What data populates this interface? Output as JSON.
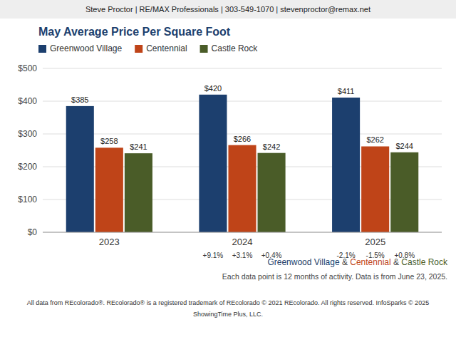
{
  "chart_data": {
    "type": "bar",
    "header": "Steve Proctor | RE/MAX Professionals | 303-549-1070 | stevenproctor@remax.net",
    "title": "May Average Price Per Square Foot",
    "categories": [
      "2023",
      "2024",
      "2025"
    ],
    "series": [
      {
        "name": "Greenwood Village",
        "color": "#1C3F6E",
        "values": [
          385,
          420,
          411
        ],
        "value_labels": [
          "$385",
          "$420",
          "$411"
        ],
        "change_labels": [
          null,
          "+9.1%",
          "-2.1%"
        ]
      },
      {
        "name": "Centennial",
        "color": "#BF4418",
        "values": [
          258,
          266,
          262
        ],
        "value_labels": [
          "$258",
          "$266",
          "$262"
        ],
        "change_labels": [
          null,
          "+3.1%",
          "-1.5%"
        ]
      },
      {
        "name": "Castle Rock",
        "color": "#4A5C28",
        "values": [
          241,
          242,
          244
        ],
        "value_labels": [
          "$241",
          "$242",
          "$244"
        ],
        "change_labels": [
          null,
          "+0.4%",
          "+0.8%"
        ]
      }
    ],
    "ylim": [
      0,
      500
    ],
    "yticks": [
      {
        "value": 0,
        "label": "$0"
      },
      {
        "value": 100,
        "label": "$100"
      },
      {
        "value": 200,
        "label": "$200"
      },
      {
        "value": 300,
        "label": "$300"
      },
      {
        "value": 400,
        "label": "$400"
      },
      {
        "value": 500,
        "label": "$500"
      }
    ],
    "grid": true,
    "legend": "upper left",
    "data_labels": true,
    "footer_separator": " & ",
    "notes": [
      "Each data point is 12 months of activity. Data is from June 23, 2025.",
      "All data from REcolorado®. REcolorado® is a registered trademark of REcolorado © 2021 REcolorado. All rights reserved. InfoSparks © 2025",
      "ShowingTime Plus, LLC."
    ]
  }
}
